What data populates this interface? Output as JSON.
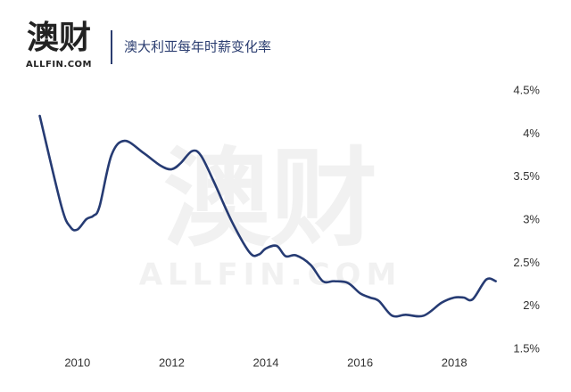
{
  "brand": {
    "name": "澳财",
    "site": "ALLFIN.COM"
  },
  "chart_data": {
    "type": "line",
    "title": "澳大利亚每年时薪变化率",
    "x": [
      2009.2,
      2009.66,
      2009.85,
      2010,
      2010.19,
      2010.34,
      2010.47,
      2010.72,
      2011.0,
      2011.4,
      2011.77,
      2012,
      2012.19,
      2012.43,
      2012.62,
      2012.9,
      2013.28,
      2013.66,
      2013.85,
      2014,
      2014.23,
      2014.42,
      2014.64,
      2014.95,
      2015.21,
      2015.45,
      2015.74,
      2016,
      2016.21,
      2016.4,
      2016.68,
      2016.97,
      2017.35,
      2017.73,
      2018,
      2018.2,
      2018.39,
      2018.68,
      2018.88
    ],
    "series": [
      {
        "color": "#263b73",
        "values": [
          4.21,
          3.16,
          2.92,
          2.89,
          3.01,
          3.05,
          3.16,
          3.75,
          3.92,
          3.78,
          3.63,
          3.59,
          3.66,
          3.8,
          3.75,
          3.44,
          2.98,
          2.62,
          2.6,
          2.67,
          2.7,
          2.58,
          2.59,
          2.48,
          2.29,
          2.29,
          2.27,
          2.15,
          2.1,
          2.06,
          1.89,
          1.9,
          1.89,
          2.04,
          2.1,
          2.1,
          2.08,
          2.31,
          2.29
        ]
      }
    ],
    "xlim": [
      2009,
      2019
    ],
    "xticks": [
      2010,
      2012,
      2014,
      2016,
      2018
    ],
    "ylim": [
      1.5,
      4.5
    ],
    "yticks": [
      {
        "value": 1.5,
        "label": "1.5%"
      },
      {
        "value": 2,
        "label": "2%"
      },
      {
        "value": 2.5,
        "label": "2.5%"
      },
      {
        "value": 3,
        "label": "3%"
      },
      {
        "value": 3.5,
        "label": "3.5%"
      },
      {
        "value": 4,
        "label": "4%"
      },
      {
        "value": 4.5,
        "label": "4.5%"
      }
    ],
    "grid": false
  }
}
